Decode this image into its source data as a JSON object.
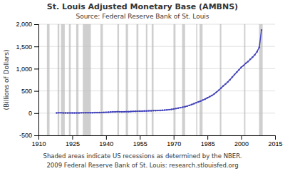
{
  "chart_data": {
    "type": "line",
    "title": "St. Louis Adjusted Monetary Base (AMBNS)",
    "subtitle": "Source: Federal Reserve Bank of St. Louis",
    "ylabel": "(Billions of Dollars)",
    "annotations": [
      "Shaded areas indicate US recessions as determined by the NBER.",
      "2009 Federal Reserve Bank of St. Louis:  research.stlouisfed.org"
    ],
    "x": [
      1918,
      1919,
      1920,
      1921,
      1922,
      1923,
      1924,
      1925,
      1926,
      1927,
      1928,
      1929,
      1930,
      1931,
      1932,
      1933,
      1934,
      1935,
      1936,
      1937,
      1938,
      1939,
      1940,
      1941,
      1942,
      1943,
      1944,
      1945,
      1946,
      1947,
      1948,
      1949,
      1950,
      1951,
      1952,
      1953,
      1954,
      1955,
      1956,
      1957,
      1958,
      1959,
      1960,
      1961,
      1962,
      1963,
      1964,
      1965,
      1966,
      1967,
      1968,
      1969,
      1970,
      1971,
      1972,
      1973,
      1974,
      1975,
      1976,
      1977,
      1978,
      1979,
      1980,
      1981,
      1982,
      1983,
      1984,
      1985,
      1986,
      1987,
      1988,
      1989,
      1990,
      1991,
      1992,
      1993,
      1994,
      1995,
      1996,
      1997,
      1998,
      1999,
      2000,
      2001,
      2002,
      2003,
      2004,
      2005,
      2006,
      2007,
      2008,
      2009
    ],
    "values": [
      6,
      7,
      7,
      6,
      5,
      5,
      5,
      6,
      6,
      6,
      6,
      7,
      7,
      8,
      8,
      8,
      10,
      12,
      13,
      14,
      15,
      17,
      19,
      22,
      25,
      28,
      30,
      32,
      31,
      30,
      31,
      32,
      34,
      37,
      39,
      41,
      43,
      44,
      46,
      48,
      50,
      52,
      53,
      56,
      57,
      59,
      62,
      65,
      68,
      73,
      79,
      84,
      92,
      103,
      112,
      123,
      135,
      145,
      159,
      175,
      193,
      213,
      235,
      254,
      272,
      296,
      318,
      345,
      371,
      397,
      432,
      472,
      513,
      562,
      612,
      653,
      700,
      752,
      810,
      868,
      923,
      975,
      1030,
      1070,
      1120,
      1160,
      1210,
      1260,
      1310,
      1380,
      1480,
      1870
    ],
    "color": "#4444bb",
    "marker": "dot",
    "recessions": {
      "color": "#bbbbbb",
      "ranges": [
        [
          1913.75,
          1914.92
        ],
        [
          1918.5,
          1919.25
        ],
        [
          1920.0,
          1921.67
        ],
        [
          1923.5,
          1924.33
        ],
        [
          1926.75,
          1927.75
        ],
        [
          1929.67,
          1933.25
        ],
        [
          1937.5,
          1938.58
        ],
        [
          1945.0,
          1945.75
        ],
        [
          1948.75,
          1949.75
        ],
        [
          1953.5,
          1954.33
        ],
        [
          1957.67,
          1958.33
        ],
        [
          1960.25,
          1961.08
        ],
        [
          1969.92,
          1970.83
        ],
        [
          1973.75,
          1975.08
        ],
        [
          1980.0,
          1980.5
        ],
        [
          1981.5,
          1982.83
        ],
        [
          1990.5,
          1991.17
        ],
        [
          2001.25,
          2001.83
        ],
        [
          2007.92,
          2009.5
        ]
      ]
    },
    "xlim": [
      1910,
      2015
    ],
    "ylim": [
      -500,
      2000
    ],
    "xticks": [
      1910,
      1925,
      1940,
      1955,
      1970,
      1985,
      2000,
      2015
    ],
    "yticks": [
      -500,
      0,
      500,
      {
        "value": 1000,
        "label": "1,000"
      },
      {
        "value": 1500,
        "label": "1,500"
      },
      {
        "value": 2000,
        "label": "2,000"
      }
    ],
    "grid": true
  }
}
